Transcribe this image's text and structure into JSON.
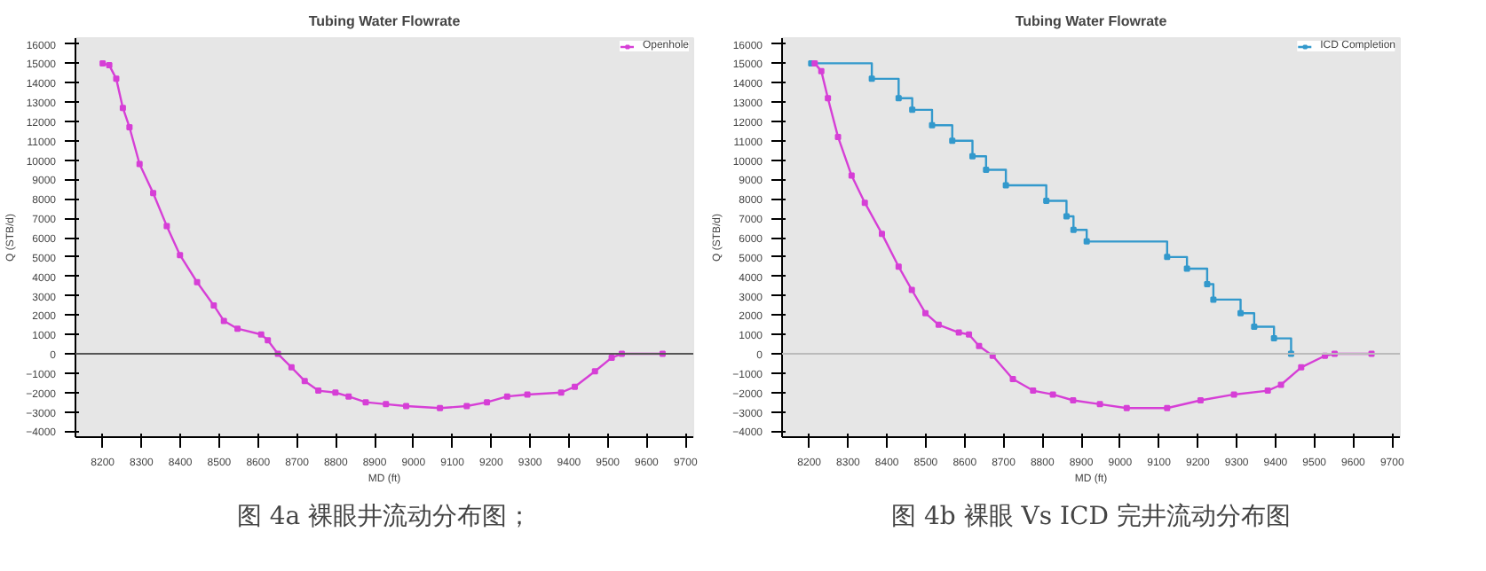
{
  "chart_data": [
    {
      "type": "line",
      "title": "Tubing Water Flowrate",
      "xlabel": "MD (ft)",
      "ylabel": "Q (STB/d)",
      "annotations": [
        "图 4a 裸眼井流动分布图；"
      ],
      "legend": "top right",
      "grid": false,
      "marker": "square",
      "line_style": "solid",
      "xlim": [
        8130,
        9720
      ],
      "xticks": [
        8200,
        8300,
        8400,
        8500,
        8600,
        8700,
        8800,
        8900,
        9000,
        9100,
        9200,
        9300,
        9400,
        9500,
        9600,
        9700
      ],
      "ylim": [
        -4300,
        16300
      ],
      "yticks": [
        -4000,
        -3000,
        -2000,
        -1000,
        0,
        1000,
        2000,
        3000,
        4000,
        5000,
        6000,
        7000,
        8000,
        9000,
        10000,
        11000,
        12000,
        13000,
        14000,
        15000,
        16000
      ],
      "ref_lines": [
        {
          "axis": "y",
          "value": 0,
          "color": "#555555"
        }
      ],
      "series": [
        {
          "name": "Openhole",
          "color": "#d63fd6",
          "x": [
            8200,
            8217,
            8235,
            8252,
            8269,
            8295,
            8330,
            8365,
            8399,
            8443,
            8486,
            8512,
            8547,
            8608,
            8625,
            8651,
            8686,
            8720,
            8755,
            8799,
            8833,
            8877,
            8929,
            8981,
            9068,
            9137,
            9189,
            9241,
            9293,
            9380,
            9415,
            9467,
            9510,
            9536,
            9641
          ],
          "values": [
            15000,
            14900,
            14200,
            12700,
            11700,
            9800,
            8300,
            6600,
            5100,
            3700,
            2500,
            1700,
            1300,
            1000,
            700,
            0,
            -700,
            -1400,
            -1900,
            -2000,
            -2200,
            -2500,
            -2600,
            -2700,
            -2800,
            -2700,
            -2500,
            -2200,
            -2100,
            -2000,
            -1700,
            -900,
            -200,
            0,
            0
          ]
        }
      ]
    },
    {
      "type": "line",
      "title": "Tubing Water Flowrate",
      "xlabel": "MD (ft)",
      "ylabel": "Q (STB/d)",
      "annotations": [
        "图 4b 裸眼 Vs ICD 完井流动分布图"
      ],
      "legend": "top right",
      "grid": false,
      "marker": "square",
      "line_style": "solid",
      "xlim": [
        8130,
        9720
      ],
      "xticks": [
        8200,
        8300,
        8400,
        8500,
        8600,
        8700,
        8800,
        8900,
        9000,
        9100,
        9200,
        9300,
        9400,
        9500,
        9600,
        9700
      ],
      "ylim": [
        -4300,
        16300
      ],
      "yticks": [
        -4000,
        -3000,
        -2000,
        -1000,
        0,
        1000,
        2000,
        3000,
        4000,
        5000,
        6000,
        7000,
        8000,
        9000,
        10000,
        11000,
        12000,
        13000,
        14000,
        15000,
        16000
      ],
      "ref_lines": [
        {
          "axis": "y",
          "value": 0,
          "color": "#bbbbbb"
        }
      ],
      "series": [
        {
          "name": "ICD Completion",
          "type": "step",
          "color": "#3399cc",
          "x": [
            8205,
            8361,
            8430,
            8465,
            8516,
            8568,
            8620,
            8655,
            8706,
            8810,
            8862,
            8880,
            8914,
            9121,
            9172,
            9224,
            9240,
            9310,
            9345,
            9396,
            9440
          ],
          "values": [
            15000,
            14200,
            13200,
            12600,
            11800,
            11000,
            10200,
            9500,
            8700,
            7900,
            7100,
            6400,
            5800,
            5000,
            4400,
            3600,
            2800,
            2100,
            1400,
            800,
            0
          ]
        },
        {
          "color": "#d63fd6",
          "x": [
            8214,
            8231,
            8248,
            8274,
            8309,
            8343,
            8387,
            8430,
            8464,
            8499,
            8533,
            8585,
            8611,
            8637,
            8672,
            8724,
            8776,
            8827,
            8879,
            8948,
            9017,
            9121,
            9207,
            9293,
            9380,
            9414,
            9466,
            9527,
            9552,
            9647
          ],
          "values": [
            15000,
            14600,
            13200,
            11200,
            9200,
            7800,
            6200,
            4500,
            3300,
            2100,
            1500,
            1100,
            1000,
            400,
            -100,
            -1300,
            -1900,
            -2100,
            -2400,
            -2600,
            -2800,
            -2800,
            -2400,
            -2100,
            -1900,
            -1600,
            -700,
            -100,
            0,
            0
          ]
        }
      ]
    }
  ]
}
